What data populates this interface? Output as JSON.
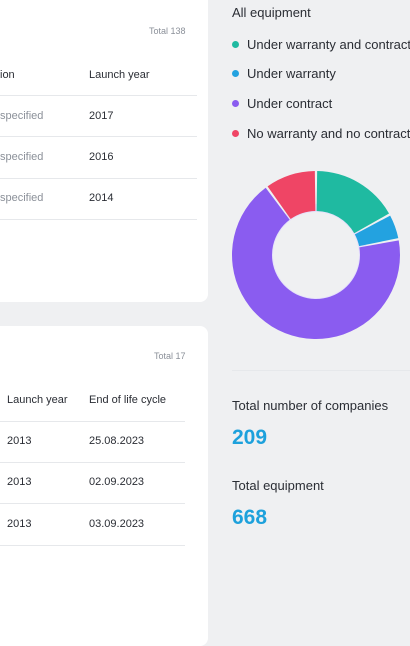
{
  "table_top": {
    "total": "Total 138",
    "headers": [
      "ion",
      "Launch year"
    ],
    "rows": [
      [
        "specified",
        "2017"
      ],
      [
        "specified",
        "2016"
      ],
      [
        "specified",
        "2014"
      ]
    ]
  },
  "table_bottom": {
    "total": "Total 17",
    "headers": [
      "Launch year",
      "End of life cycle"
    ],
    "rows": [
      [
        "2013",
        "25.08.2023"
      ],
      [
        "2013",
        "02.09.2023"
      ],
      [
        "2013",
        "03.09.2023"
      ]
    ]
  },
  "equipment_panel": {
    "title": "All equipment",
    "legend": [
      {
        "label": "Under warranty and contract",
        "color": "#1fbaa1"
      },
      {
        "label": "Under warranty",
        "color": "#23a2e0"
      },
      {
        "label": "Under contract",
        "color": "#8a5cf0"
      },
      {
        "label": "No warranty and no contract",
        "color": "#ef4565"
      }
    ],
    "companies_label": "Total number of companies",
    "companies_value": "209",
    "equipment_label": "Total equipment",
    "equipment_value": "668"
  },
  "chart_data": {
    "type": "pie",
    "categories": [
      "Under warranty and contract",
      "Under warranty",
      "Under contract",
      "No warranty and no contract"
    ],
    "values": [
      17,
      5,
      68,
      10
    ],
    "colors": [
      "#1fbaa1",
      "#23a2e0",
      "#8a5cf0",
      "#ef4565"
    ]
  }
}
